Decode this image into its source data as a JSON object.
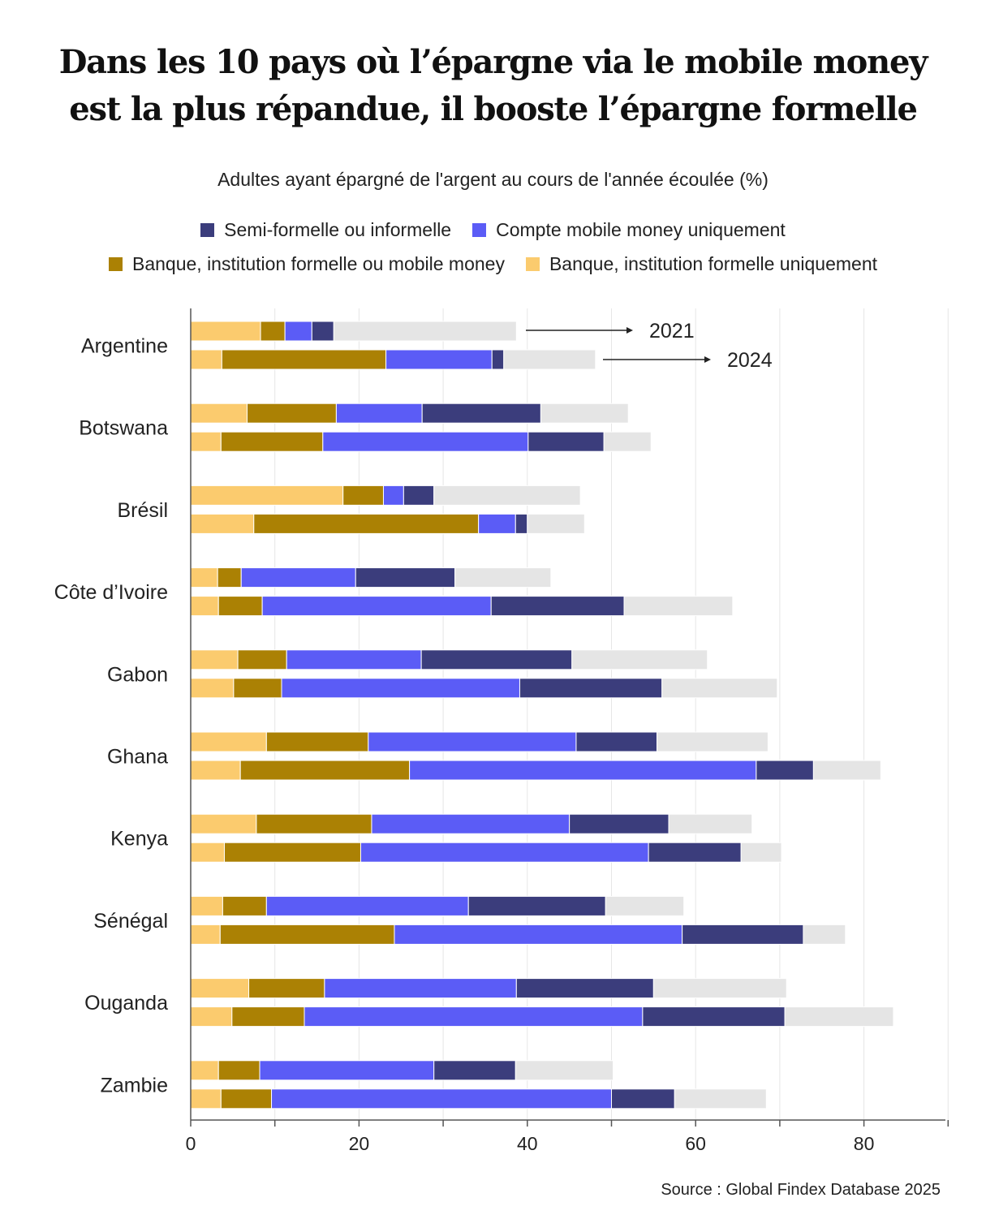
{
  "title_lines": [
    "Dans les 10 pays où l’épargne via le mobile money",
    "est la plus répandue, il booste l’épargne formelle"
  ],
  "subtitle": "Adultes ayant épargné de l'argent au cours de l'année écoulée (%)",
  "legend": {
    "semi": "Semi-formelle ou informelle",
    "mobile": "Compte mobile money uniquement",
    "bank_or_mobile": "Banque, institution formelle ou mobile money",
    "bank_only": "Banque, institution formelle uniquement"
  },
  "colors": {
    "bank_only": "#fbcb6e",
    "bank_or_mobile": "#ab8104",
    "mobile": "#5b5cf6",
    "semi": "#3b3d7c",
    "other": "#e5e5e5",
    "grid": "#e6e6e6",
    "axis": "#555555"
  },
  "annotations": {
    "year1": "2021",
    "year2": "2024"
  },
  "source": "Source : Global Findex Database 2025",
  "chart_data": {
    "type": "bar",
    "orientation": "horizontal",
    "stacked": true,
    "xlim": [
      0,
      90
    ],
    "xticks": [
      0,
      20,
      40,
      60,
      80
    ],
    "series_order": [
      "bank_only",
      "bank_or_mobile",
      "mobile",
      "semi",
      "other"
    ],
    "countries": [
      {
        "name": "Argentine",
        "y2021": [
          8.3,
          2.9,
          3.2,
          2.6,
          21.7
        ],
        "y2024": [
          3.7,
          19.5,
          12.6,
          1.4,
          10.9
        ]
      },
      {
        "name": "Botswana",
        "y2021": [
          6.7,
          10.6,
          10.2,
          14.1,
          10.4
        ],
        "y2024": [
          3.6,
          12.1,
          24.4,
          9.0,
          5.6
        ]
      },
      {
        "name": "Brésil",
        "y2021": [
          18.1,
          4.8,
          2.4,
          3.6,
          17.4
        ],
        "y2024": [
          7.5,
          26.7,
          4.4,
          1.4,
          6.8
        ]
      },
      {
        "name": "Côte   d’Ivoire",
        "y2021": [
          3.2,
          2.8,
          13.6,
          11.8,
          11.4
        ],
        "y2024": [
          3.3,
          5.2,
          27.2,
          15.8,
          12.9
        ]
      },
      {
        "name": "Gabon",
        "y2021": [
          5.6,
          5.8,
          16.0,
          17.9,
          16.1
        ],
        "y2024": [
          5.1,
          5.7,
          28.3,
          16.9,
          13.7
        ]
      },
      {
        "name": "Ghana",
        "y2021": [
          9.0,
          12.1,
          24.7,
          9.6,
          13.2
        ],
        "y2024": [
          5.9,
          20.1,
          41.2,
          6.8,
          8.0
        ]
      },
      {
        "name": "Kenya",
        "y2021": [
          7.8,
          13.7,
          23.5,
          11.8,
          9.9
        ],
        "y2024": [
          4.0,
          16.2,
          34.2,
          11.0,
          4.8
        ]
      },
      {
        "name": "Sénégal",
        "y2021": [
          3.8,
          5.2,
          24.0,
          16.3,
          9.3
        ],
        "y2024": [
          3.5,
          20.7,
          34.2,
          14.4,
          5.0
        ]
      },
      {
        "name": "Ouganda",
        "y2021": [
          6.9,
          9.0,
          22.8,
          16.3,
          15.8
        ],
        "y2024": [
          4.9,
          8.6,
          40.2,
          16.9,
          12.9
        ]
      },
      {
        "name": "Zambie",
        "y2021": [
          3.3,
          4.9,
          20.7,
          9.7,
          11.6
        ],
        "y2024": [
          3.6,
          6.0,
          40.4,
          7.5,
          10.9
        ]
      }
    ]
  }
}
